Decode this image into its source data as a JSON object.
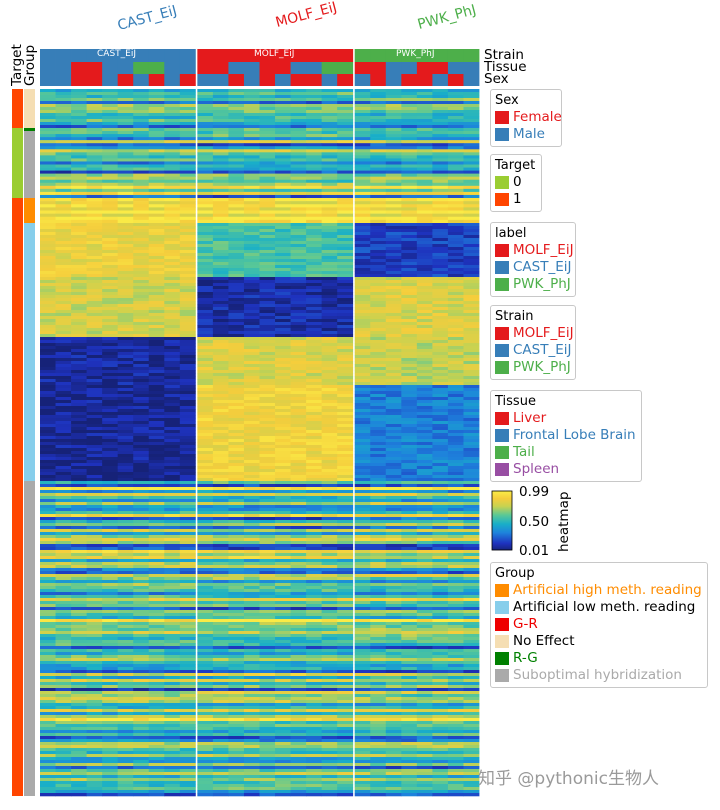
{
  "chart_data": {
    "type": "heatmap",
    "colorbar": {
      "label": "heatmap",
      "ticks": [
        "0.99",
        "0.50",
        "0.01"
      ],
      "min": 0.01,
      "max": 0.99
    },
    "column_annotation_labels": [
      "Strain",
      "Tissue",
      "Sex"
    ],
    "row_annotation_labels": [
      "Target",
      "Group"
    ],
    "column_groups": [
      {
        "name": "CAST_EiJ",
        "color": "#377eb8",
        "columns": 10
      },
      {
        "name": "MOLF_EiJ",
        "color": "#e41a1c",
        "columns": 10
      },
      {
        "name": "PWK_PhJ",
        "color": "#4daf4a",
        "columns": 8
      }
    ],
    "top_labels": [
      "CAST_EiJ",
      "MOLF_EiJ",
      "PWK_PhJ"
    ],
    "row_blocks": [
      {
        "group": "No Effect",
        "target": "1",
        "rows": 0.055,
        "pattern": "mixed"
      },
      {
        "group": "R-G",
        "target": "0",
        "rows": 0.004,
        "pattern": "mixed"
      },
      {
        "group": "Suboptimal hybridization",
        "target": "0",
        "rows": 0.095,
        "pattern": "mixed"
      },
      {
        "group": "Artificial high meth. reading",
        "target": "1",
        "rows": 0.035,
        "pattern": "high"
      },
      {
        "group": "Artificial low meth. reading",
        "target": "1",
        "rows": 0.365,
        "pattern": "sections"
      },
      {
        "group": "Suboptimal hybridization",
        "target": "1",
        "rows": 0.446,
        "pattern": "mixed"
      }
    ],
    "low_sections": [
      {
        "frac": 0.2,
        "levels": [
          0.85,
          0.55,
          0.15
        ]
      },
      {
        "frac": 0.24,
        "levels": [
          0.78,
          0.08,
          0.8
        ]
      },
      {
        "frac": 0.18,
        "levels": [
          0.06,
          0.8,
          0.75
        ]
      },
      {
        "frac": 0.38,
        "levels": [
          0.05,
          0.88,
          0.3
        ]
      }
    ]
  },
  "legends": {
    "sex": {
      "title": "Sex",
      "items": [
        {
          "label": "Female",
          "color": "#e41a1c"
        },
        {
          "label": "Male",
          "color": "#377eb8"
        }
      ]
    },
    "target": {
      "title": "Target",
      "items": [
        {
          "label": "0",
          "color": "#9acd32"
        },
        {
          "label": "1",
          "color": "#ff4500"
        }
      ]
    },
    "label": {
      "title": "label",
      "items": [
        {
          "label": "MOLF_EiJ",
          "color": "#e41a1c"
        },
        {
          "label": "CAST_EiJ",
          "color": "#377eb8"
        },
        {
          "label": "PWK_PhJ",
          "color": "#4daf4a"
        }
      ]
    },
    "strain": {
      "title": "Strain",
      "items": [
        {
          "label": "MOLF_EiJ",
          "color": "#e41a1c"
        },
        {
          "label": "CAST_EiJ",
          "color": "#377eb8"
        },
        {
          "label": "PWK_PhJ",
          "color": "#4daf4a"
        }
      ]
    },
    "tissue": {
      "title": "Tissue",
      "items": [
        {
          "label": "Liver",
          "color": "#e41a1c"
        },
        {
          "label": "Frontal Lobe Brain",
          "color": "#377eb8"
        },
        {
          "label": "Tail",
          "color": "#4daf4a"
        },
        {
          "label": "Spleen",
          "color": "#984ea3"
        }
      ]
    },
    "group": {
      "title": "Group",
      "items": [
        {
          "label": "Artificial high meth. reading",
          "color": "#ff8c00"
        },
        {
          "label": "Artificial low meth. reading",
          "color": "#87ceeb"
        },
        {
          "label": "G-R",
          "color": "#ee0000"
        },
        {
          "label": "No Effect",
          "color": "#f5deb3"
        },
        {
          "label": "R-G",
          "color": "#008000"
        },
        {
          "label": "Suboptimal hybridization",
          "color": "#aaaaaa"
        }
      ]
    }
  },
  "watermark": "知乎 @pythonic生物人"
}
